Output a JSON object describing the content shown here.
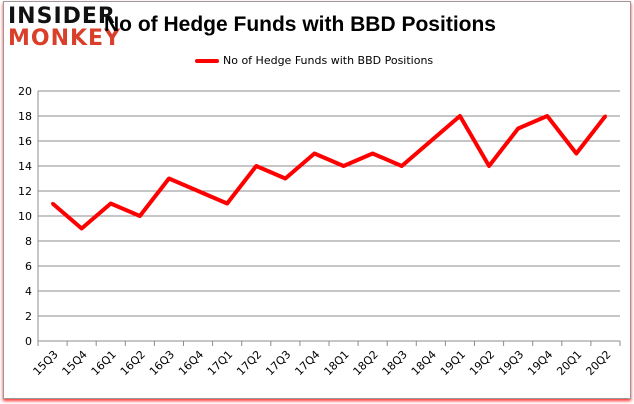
{
  "logo": {
    "line1": "INSIDER",
    "line2": "MONKEY"
  },
  "chart_data": {
    "type": "line",
    "title": "No of Hedge Funds with BBD Positions",
    "xlabel": "",
    "ylabel": "",
    "categories": [
      "15Q3",
      "15Q4",
      "16Q1",
      "16Q2",
      "16Q3",
      "16Q4",
      "17Q1",
      "17Q2",
      "17Q3",
      "17Q4",
      "18Q1",
      "18Q2",
      "18Q3",
      "18Q4",
      "19Q1",
      "19Q2",
      "19Q3",
      "19Q4",
      "20Q1",
      "20Q2"
    ],
    "series": [
      {
        "name": "No of Hedge Funds with BBD Positions",
        "color": "#ff0000",
        "values": [
          11,
          9,
          11,
          10,
          13,
          12,
          11,
          14,
          13,
          15,
          14,
          15,
          14,
          16,
          18,
          14,
          17,
          18,
          15,
          18
        ]
      }
    ],
    "ylim": [
      0,
      20
    ],
    "yticks": [
      0,
      2,
      4,
      6,
      8,
      10,
      12,
      14,
      16,
      18,
      20
    ],
    "grid": true,
    "legend_position": "top-center"
  }
}
